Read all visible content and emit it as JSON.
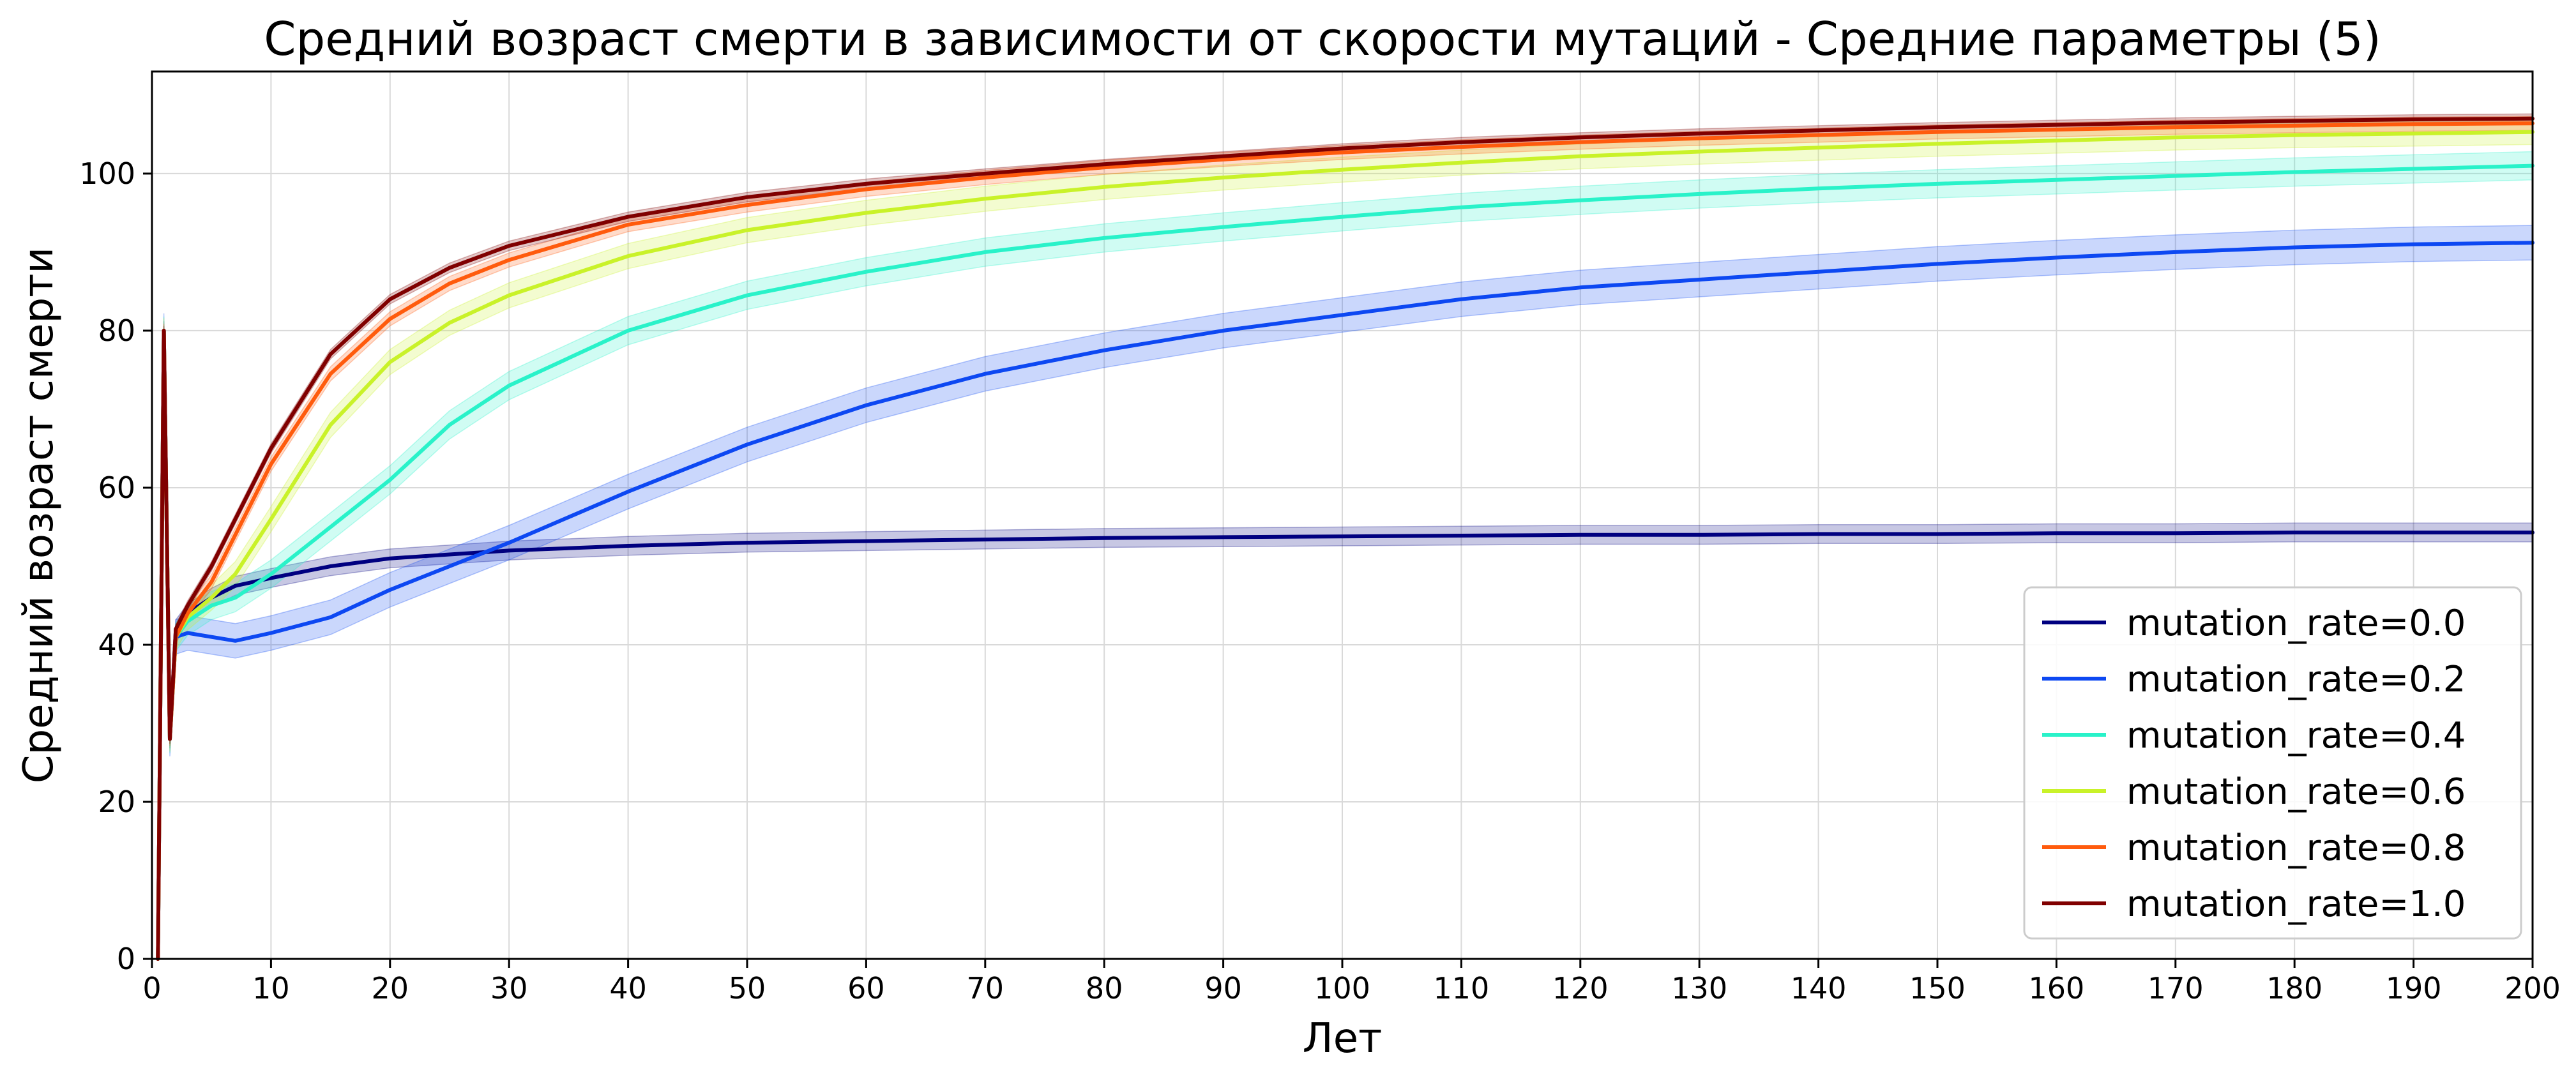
{
  "chart_data": {
    "type": "line",
    "title": "Средний возраст смерти в зависимости от скорости мутаций - Средние параметры (5)",
    "xlabel": "Лет",
    "ylabel": "Средний возраст смерти",
    "xlim": [
      0,
      200
    ],
    "ylim": [
      0,
      113
    ],
    "x_ticks": [
      0,
      10,
      20,
      30,
      40,
      50,
      60,
      70,
      80,
      90,
      100,
      110,
      120,
      130,
      140,
      150,
      160,
      170,
      180,
      190,
      200
    ],
    "y_ticks": [
      0,
      20,
      40,
      60,
      80,
      100
    ],
    "grid": true,
    "legend_position": "lower-right",
    "series": [
      {
        "name": "mutation_rate=0.0",
        "color": "#000080",
        "x": [
          0.5,
          1,
          1.5,
          2,
          3,
          5,
          7,
          10,
          15,
          20,
          25,
          30,
          40,
          50,
          60,
          70,
          80,
          90,
          100,
          110,
          120,
          130,
          140,
          150,
          160,
          170,
          180,
          190,
          200
        ],
        "y": [
          0,
          80,
          28,
          42,
          44,
          46,
          47.5,
          48.5,
          50,
          51,
          51.5,
          52,
          52.6,
          53,
          53.2,
          53.4,
          53.6,
          53.7,
          53.8,
          53.9,
          54,
          54,
          54.1,
          54.1,
          54.2,
          54.2,
          54.3,
          54.3,
          54.3
        ],
        "band": 1.2
      },
      {
        "name": "mutation_rate=0.2",
        "color": "#0d48f2",
        "x": [
          0.5,
          1,
          1.5,
          2,
          3,
          5,
          7,
          10,
          15,
          20,
          25,
          30,
          40,
          50,
          60,
          70,
          80,
          90,
          100,
          110,
          120,
          130,
          140,
          150,
          160,
          170,
          180,
          190,
          200
        ],
        "y": [
          0,
          80,
          28,
          41,
          41.5,
          41,
          40.5,
          41.5,
          43.5,
          47,
          50,
          53,
          59.5,
          65.5,
          70.5,
          74.5,
          77.5,
          80,
          82,
          84,
          85.5,
          86.5,
          87.5,
          88.5,
          89.3,
          90,
          90.6,
          91,
          91.2
        ],
        "band": 2.2
      },
      {
        "name": "mutation_rate=0.4",
        "color": "#29f2c9",
        "x": [
          0.5,
          1,
          1.5,
          2,
          3,
          5,
          7,
          10,
          15,
          20,
          25,
          30,
          40,
          50,
          60,
          70,
          80,
          90,
          100,
          110,
          120,
          130,
          140,
          150,
          160,
          170,
          180,
          190,
          200
        ],
        "y": [
          0,
          80,
          28,
          41,
          43,
          45,
          46,
          49,
          55,
          61,
          68,
          73,
          80,
          84.5,
          87.5,
          90,
          91.8,
          93.2,
          94.5,
          95.7,
          96.6,
          97.4,
          98.1,
          98.7,
          99.2,
          99.7,
          100.2,
          100.6,
          101
        ],
        "band": 1.8
      },
      {
        "name": "mutation_rate=0.6",
        "color": "#c9f229",
        "x": [
          0.5,
          1,
          1.5,
          2,
          3,
          5,
          7,
          10,
          15,
          20,
          25,
          30,
          40,
          50,
          60,
          70,
          80,
          90,
          100,
          110,
          120,
          130,
          140,
          150,
          160,
          170,
          180,
          190,
          200
        ],
        "y": [
          0,
          80,
          28,
          41,
          43.5,
          46,
          49,
          56,
          68,
          76,
          81,
          84.5,
          89.5,
          92.8,
          95,
          96.8,
          98.3,
          99.5,
          100.5,
          101.4,
          102.2,
          102.8,
          103.3,
          103.8,
          104.2,
          104.6,
          104.9,
          105.1,
          105.3
        ],
        "band": 1.6
      },
      {
        "name": "mutation_rate=0.8",
        "color": "#ff5b0d",
        "x": [
          0.5,
          1,
          1.5,
          2,
          3,
          5,
          7,
          10,
          15,
          20,
          25,
          30,
          40,
          50,
          60,
          70,
          80,
          90,
          100,
          110,
          120,
          130,
          140,
          150,
          160,
          170,
          180,
          190,
          200
        ],
        "y": [
          0,
          80,
          28,
          41,
          44,
          48,
          54,
          63,
          74.5,
          81.5,
          86,
          89,
          93.5,
          96,
          98,
          99.5,
          100.8,
          101.8,
          102.7,
          103.4,
          104,
          104.5,
          104.9,
          105.3,
          105.6,
          105.9,
          106.1,
          106.3,
          106.4
        ],
        "band": 0.9
      },
      {
        "name": "mutation_rate=1.0",
        "color": "#800000",
        "x": [
          0.5,
          1,
          1.5,
          2,
          3,
          5,
          7,
          10,
          15,
          20,
          25,
          30,
          40,
          50,
          60,
          70,
          80,
          90,
          100,
          110,
          120,
          130,
          140,
          150,
          160,
          170,
          180,
          190,
          200
        ],
        "y": [
          0,
          80,
          28,
          42,
          45,
          50,
          56,
          65,
          77,
          84,
          88,
          90.8,
          94.5,
          97,
          98.7,
          100,
          101.2,
          102.2,
          103.2,
          104,
          104.6,
          105.1,
          105.5,
          105.9,
          106.2,
          106.5,
          106.7,
          106.9,
          107
        ],
        "band": 0.6
      }
    ]
  }
}
